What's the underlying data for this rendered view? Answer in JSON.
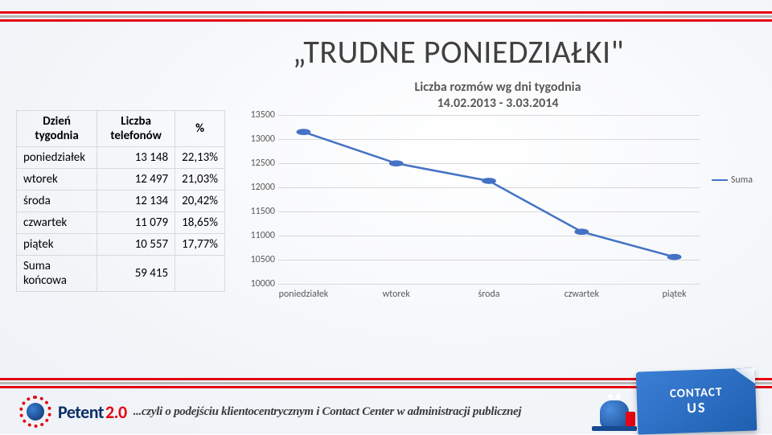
{
  "title": "„TRUDNE PONIEDZIAŁKI\"",
  "stripe_colors": [
    "#e30613",
    "#b8b8b8",
    "#e30613"
  ],
  "table": {
    "columns": [
      "Dzień tygodnia",
      "Liczba telefonów",
      "%"
    ],
    "rows": [
      [
        "poniedziałek",
        "13 148",
        "22,13%"
      ],
      [
        "wtorek",
        "12 497",
        "21,03%"
      ],
      [
        "środa",
        "12 134",
        "20,42%"
      ],
      [
        "czwartek",
        "11 079",
        "18,65%"
      ],
      [
        "piątek",
        "10 557",
        "17,77%"
      ],
      [
        "Suma końcowa",
        "59 415",
        ""
      ]
    ],
    "border_color": "#d9d9d9",
    "header_fontweight": "700",
    "fontsize": 15
  },
  "chart": {
    "type": "line",
    "title_line1": "Liczba rozmów wg dni tygodnia",
    "title_line2": "14.02.2013 - 3.03.2014",
    "title_fontsize": 16,
    "title_color": "#595959",
    "categories": [
      "poniedziałek",
      "wtorek",
      "środa",
      "czwartek",
      "piątek"
    ],
    "values": [
      13148,
      12497,
      12134,
      11079,
      10557
    ],
    "series_name": "Suma",
    "line_color": "#4472c4",
    "marker_color": "#4472c4",
    "marker_size": 6,
    "line_width": 2.5,
    "ylim": [
      10000,
      13500
    ],
    "ytick_step": 500,
    "grid_color": "#d9d9d9",
    "axis_label_color": "#595959",
    "axis_label_fontsize": 12,
    "background_color": "#ffffff"
  },
  "footer": {
    "brand_main": "Petent",
    "brand_version": "2.0",
    "brand_color": "#0b2f66",
    "brand_accent": "#e30613",
    "tagline": "...czyli o podejściu klientocentrycznym i Contact Center w administracji publicznej",
    "tagline_color": "#3a3a3a",
    "sticky_line1": "CONTACT",
    "sticky_line2": "US",
    "sticky_bg": "#2f6fc2",
    "sticky_color": "#ffffff"
  }
}
